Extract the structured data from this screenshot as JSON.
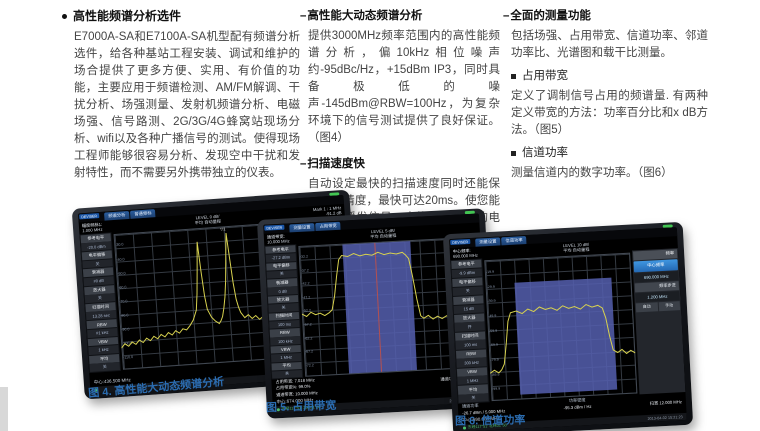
{
  "intro": {
    "title": "高性能频谱分析选件",
    "body": "E7000A-SA和E7100A-SA机型配有频谱分析选件，给各种基站工程安装、调试和维护的场合提供了更多方便、实用、有价值的功能，主要应用于频谱检测、AM/FM解调、干扰分析、场强测量、发射机频谱分析、电磁场强、信号路测、2G/3G/4G蜂窝站现场分析、wifi以及各种广播信号的测试。使得现场工程师能够很容易分析、发现空中干扰和发射特性，而不需要另外携带独立的仪表。"
  },
  "col2": {
    "sections": [
      {
        "title": "高性能大动态频谱分析",
        "body": "提供3000MHz频率范围内的高性能频谱分析，偏10kHz相位噪声约-95dBc/Hz，+15dBm IP3，同时具备极低的噪声-145dBm@RBW=100Hz，为复杂环境下的信号测试提供了良好保证。（图4）"
      },
      {
        "title": "扫描速度快",
        "body": "自动设定最快的扫描速度同时还能保证测量精度，最快可达20ms。使您能够捕捉瞬发信号，查找多种复杂的电磁干扰。"
      }
    ]
  },
  "col3": {
    "title": "全面的测量功能",
    "intro": "包括场强、占用带宽、信道功率、邻道功率比、光谱图和载干比测量。",
    "subsections": [
      {
        "title": "占用带宽",
        "body": "定义了调制信号占用的频谱量. 有两种定义带宽的方法：功率百分比和x dB方法。（图5）"
      },
      {
        "title": "信道功率",
        "body": "测量信道内的数字功率。（图6）"
      }
    ]
  },
  "colors": {
    "accent_blue": "#2b6cb0",
    "trace_yellow": "#d8d24f",
    "band_blue": "#555fa8"
  },
  "fig4": {
    "brand": "DEVISER",
    "tabs": [
      "频谱分析",
      "普通频标"
    ],
    "header": {
      "l1": "幅度频标1:",
      "l2": "1.000 MHz",
      "c1": "LEVEL 0 dB/",
      "c2": "平均  自动量程",
      "r1": "Mark 1 : 1 MHz",
      "r2": "-91.2 dB"
    },
    "menu": [
      {
        "label": "参考电平",
        "value": "-20.0 dBm"
      },
      {
        "label": "电平偏移",
        "value": "关"
      },
      {
        "label": "衰减器",
        "value": "#0 dB"
      },
      {
        "label": "放大器",
        "value": "关"
      },
      {
        "label": "扫描时间",
        "value": "13.28 sec"
      },
      {
        "label": "RBW",
        "value": "#1 kHz"
      },
      {
        "label": "VBW",
        "value": "1 kHz"
      },
      {
        "label": "平均",
        "value": "关"
      }
    ],
    "right_menu": {
      "header": "频标",
      "btn1": "频标追踪",
      "digits": [
        "1",
        "2",
        "3",
        "4",
        "5",
        "6"
      ],
      "btn2": "普通频标"
    },
    "ylabels": [
      "-30.0",
      "-40.0",
      "-50.0",
      "-60.0",
      "-70.0",
      "-80.0",
      "-90.0",
      "-100.0",
      "-110.0"
    ],
    "marker": "▽1",
    "span": "扫宽 5.000 MHz",
    "center": "中心:436.500 MHz",
    "status_left": "",
    "status_right": "2013-04-02 15:21:23",
    "trace": [
      [
        0,
        84
      ],
      [
        2,
        81
      ],
      [
        4,
        83
      ],
      [
        6,
        80
      ],
      [
        8,
        82
      ],
      [
        10,
        79
      ],
      [
        12,
        81
      ],
      [
        14,
        78
      ],
      [
        16,
        80
      ],
      [
        18,
        77
      ],
      [
        20,
        79
      ],
      [
        22,
        76
      ],
      [
        24,
        78
      ],
      [
        26,
        75
      ],
      [
        28,
        77
      ],
      [
        30,
        74
      ],
      [
        32,
        76
      ],
      [
        34,
        73
      ],
      [
        36,
        74
      ],
      [
        38,
        71
      ],
      [
        40,
        67
      ],
      [
        42,
        60
      ],
      [
        43,
        48
      ],
      [
        44,
        30
      ],
      [
        45,
        10
      ],
      [
        46,
        32
      ],
      [
        47,
        50
      ],
      [
        48,
        60
      ],
      [
        50,
        66
      ],
      [
        52,
        69
      ],
      [
        54,
        71
      ],
      [
        55,
        69
      ],
      [
        56,
        66
      ],
      [
        57,
        60
      ],
      [
        58,
        52
      ],
      [
        59,
        40
      ],
      [
        60,
        22
      ],
      [
        61,
        5
      ],
      [
        62,
        24
      ],
      [
        63,
        42
      ],
      [
        64,
        54
      ],
      [
        65,
        60
      ],
      [
        66,
        64
      ],
      [
        68,
        68
      ],
      [
        70,
        66
      ],
      [
        72,
        69
      ],
      [
        74,
        67
      ],
      [
        76,
        70
      ],
      [
        78,
        68
      ],
      [
        80,
        71
      ],
      [
        82,
        69
      ],
      [
        84,
        72
      ],
      [
        86,
        70
      ],
      [
        88,
        73
      ],
      [
        90,
        71
      ],
      [
        92,
        74
      ],
      [
        94,
        72
      ],
      [
        96,
        75
      ],
      [
        98,
        73
      ],
      [
        100,
        75
      ]
    ],
    "caption": "图 4. 高性能大动态频谱分析"
  },
  "fig5": {
    "brand": "DEVISER",
    "tabs": [
      "测量设置",
      "占用带宽"
    ],
    "header": {
      "l1": "通道带宽:",
      "l2": "10.000 MHz",
      "c1": "LEVEL 5 dB/",
      "c2": "平均  自动量程",
      "r1": "",
      "r2": ""
    },
    "menu": [
      {
        "label": "参考电平",
        "value": "-27.2 dBm"
      },
      {
        "label": "电平偏移",
        "value": "关"
      },
      {
        "label": "衰减器",
        "value": "0 dB"
      },
      {
        "label": "放大器",
        "value": "关"
      },
      {
        "label": "扫描时间",
        "value": "100 ms"
      },
      {
        "label": "RBW",
        "value": "100 kHz"
      },
      {
        "label": "VBW",
        "value": "1 MHz"
      },
      {
        "label": "平均",
        "value": "关"
      }
    ],
    "right_menu": {
      "header": "占用带宽",
      "btn_blue": "通道带宽",
      "btn_grey": "占用带宽%"
    },
    "ylabels": [
      "-32.2",
      "-37.2",
      "-42.2",
      "-47.2",
      "-52.2",
      "-57.2",
      "-62.2",
      "-67.2",
      "-72.2"
    ],
    "results_left": [
      "占用带宽: 7.018 MHz",
      "占用带宽%: 99.0%",
      "通道带宽: 10.000 MHz"
    ],
    "results_right": [
      "中心(偏差): 0 Hz",
      "通道功率: -27.938 dBm",
      "扫宽 15.000 MHz"
    ],
    "center": "中心:674.000 MHz",
    "status_left": "东经117°51' 北纬31°50'",
    "status_right": "2013-04-02 15:21:23",
    "trace": [
      [
        0,
        52
      ],
      [
        3,
        54
      ],
      [
        6,
        51
      ],
      [
        9,
        53
      ],
      [
        12,
        52
      ],
      [
        15,
        54
      ],
      [
        18,
        52
      ],
      [
        20,
        50
      ],
      [
        22,
        40
      ],
      [
        24,
        25
      ],
      [
        26,
        12
      ],
      [
        28,
        9
      ],
      [
        32,
        10
      ],
      [
        36,
        8
      ],
      [
        40,
        10
      ],
      [
        44,
        9
      ],
      [
        48,
        10
      ],
      [
        52,
        8
      ],
      [
        56,
        10
      ],
      [
        60,
        9
      ],
      [
        64,
        10
      ],
      [
        68,
        9
      ],
      [
        70,
        11
      ],
      [
        72,
        14
      ],
      [
        74,
        28
      ],
      [
        76,
        45
      ],
      [
        78,
        58
      ],
      [
        80,
        60
      ],
      [
        83,
        58
      ],
      [
        86,
        61
      ],
      [
        89,
        59
      ],
      [
        92,
        61
      ],
      [
        95,
        59
      ],
      [
        98,
        61
      ],
      [
        100,
        60
      ]
    ],
    "caption": "图 5. 占用带宽"
  },
  "fig6": {
    "brand": "DEVISER",
    "tabs": [
      "测量设置",
      "信道功率"
    ],
    "header": {
      "l1": "中心频率:",
      "l2": "690.000 MHz",
      "c1": "LEVEL 10 dB/",
      "c2": "平均  自动量程",
      "r1": "",
      "r2": ""
    },
    "menu": [
      {
        "label": "参考电平",
        "value": "-9.9 dBm"
      },
      {
        "label": "电平偏移",
        "value": "关"
      },
      {
        "label": "衰减器",
        "value": "15 dB"
      },
      {
        "label": "放大器",
        "value": "开"
      },
      {
        "label": "扫描时间",
        "value": "100 ms"
      },
      {
        "label": "RBW",
        "value": "300 kHz"
      },
      {
        "label": "VBW",
        "value": "1 MHz"
      },
      {
        "label": "平均",
        "value": "关"
      }
    ],
    "right_menu": {
      "header": "频率",
      "btn_blue": "中心频率",
      "btn_value": "690.000 MHz",
      "step_label": "频率步进",
      "step_value": "1.200 MHz",
      "toggles": [
        "自动",
        "手动"
      ]
    },
    "ylabels": [
      "-19.9",
      "-29.9",
      "-39.9",
      "-49.9",
      "-59.9",
      "-69.9",
      "-79.9",
      "-89.9",
      "-99.9"
    ],
    "res": {
      "l_label": "通道功率",
      "l_value": "-26.7 dBm / 5.000 MHz",
      "r_label": "功率密度",
      "r_value": "-95.3 dBm / Hz"
    },
    "span": "扫宽 12.000 MHz",
    "center": "中心:690.000 MHz",
    "status_left": "东经117°51' 北纬31°50'",
    "status_right": "2013-04-02 15:21:23",
    "trace": [
      [
        0,
        80
      ],
      [
        3,
        78
      ],
      [
        6,
        80
      ],
      [
        8,
        78
      ],
      [
        10,
        74
      ],
      [
        12,
        60
      ],
      [
        14,
        44
      ],
      [
        16,
        38
      ],
      [
        20,
        37
      ],
      [
        24,
        39
      ],
      [
        28,
        36
      ],
      [
        32,
        38
      ],
      [
        36,
        35
      ],
      [
        40,
        37
      ],
      [
        44,
        36
      ],
      [
        48,
        38
      ],
      [
        52,
        35
      ],
      [
        56,
        37
      ],
      [
        60,
        36
      ],
      [
        64,
        38
      ],
      [
        68,
        35
      ],
      [
        72,
        37
      ],
      [
        76,
        36
      ],
      [
        79,
        38
      ],
      [
        81,
        45
      ],
      [
        83,
        58
      ],
      [
        85,
        68
      ],
      [
        88,
        70
      ],
      [
        91,
        68
      ],
      [
        94,
        71
      ],
      [
        97,
        69
      ],
      [
        100,
        71
      ]
    ],
    "caption": "图 6. 信道功率"
  }
}
